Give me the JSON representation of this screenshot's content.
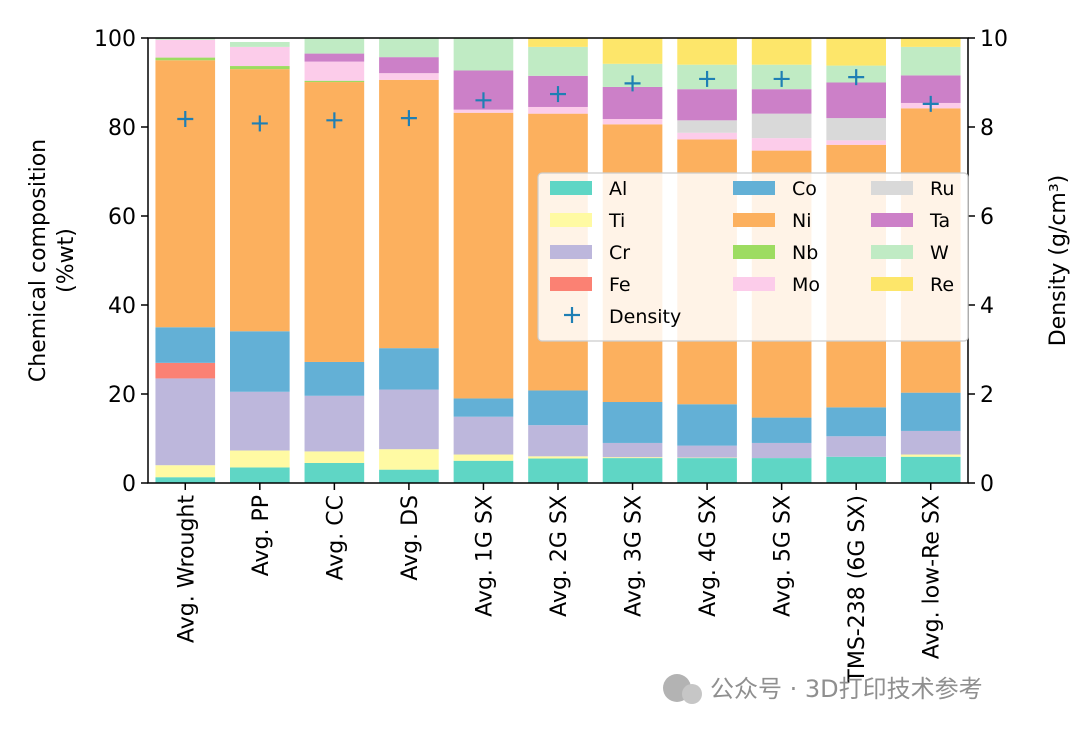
{
  "chart_data": {
    "type": "bar",
    "stacked": true,
    "categories": [
      "Avg. Wrought",
      "Avg. PP",
      "Avg. CC",
      "Avg. DS",
      "Avg. 1G SX",
      "Avg. 2G SX",
      "Avg. 3G SX",
      "Avg. 4G SX",
      "Avg. 5G SX",
      "TMS-238 (6G SX)",
      "Avg. low-Re SX"
    ],
    "ylabel_lines": [
      "Chemical composition",
      "(%wt)"
    ],
    "y2label": "Density (g/cm³)",
    "ylim": [
      0,
      100
    ],
    "y2lim": [
      0,
      10
    ],
    "yticks": [
      0,
      20,
      40,
      60,
      80,
      100
    ],
    "y2ticks": [
      0,
      2,
      4,
      6,
      8,
      10
    ],
    "series": [
      {
        "name": "Al",
        "color": "#5fd6c5",
        "values": [
          1.3,
          3.5,
          4.5,
          3.0,
          5.0,
          5.5,
          5.6,
          5.6,
          5.6,
          5.9,
          5.9
        ]
      },
      {
        "name": "Ti",
        "color": "#fffaa3",
        "values": [
          2.7,
          3.8,
          2.6,
          4.6,
          1.4,
          0.5,
          0.2,
          0.1,
          0.0,
          0.0,
          0.5
        ]
      },
      {
        "name": "Cr",
        "color": "#bdb7dc",
        "values": [
          19.5,
          13.2,
          12.5,
          13.4,
          8.5,
          7.0,
          3.2,
          2.7,
          3.4,
          4.6,
          5.3
        ]
      },
      {
        "name": "Fe",
        "color": "#fb8173",
        "values": [
          3.5,
          0.0,
          0.0,
          0.0,
          0.0,
          0.0,
          0.0,
          0.0,
          0.0,
          0.0,
          0.0
        ]
      },
      {
        "name": "Co",
        "color": "#63b0d6",
        "values": [
          8.0,
          13.6,
          7.6,
          9.3,
          4.1,
          7.8,
          9.2,
          9.3,
          5.7,
          6.5,
          8.6
        ]
      },
      {
        "name": "Ni",
        "color": "#fcb05e",
        "values": [
          60.0,
          58.9,
          62.9,
          60.3,
          64.2,
          62.2,
          62.4,
          59.5,
          60.0,
          59.0,
          63.9
        ]
      },
      {
        "name": "Nb",
        "color": "#9ddc61",
        "values": [
          0.6,
          0.7,
          0.3,
          0.0,
          0.0,
          0.0,
          0.0,
          0.0,
          0.0,
          0.0,
          0.0
        ]
      },
      {
        "name": "Mo",
        "color": "#fcccea",
        "values": [
          4.0,
          4.3,
          4.3,
          1.5,
          0.7,
          1.5,
          1.2,
          1.5,
          2.8,
          1.0,
          1.2
        ]
      },
      {
        "name": "Ru",
        "color": "#d9d9d9",
        "values": [
          0.0,
          0.0,
          0.0,
          0.0,
          0.0,
          0.0,
          0.0,
          2.8,
          5.5,
          5.0,
          0.0
        ]
      },
      {
        "name": "Ta",
        "color": "#cc80c8",
        "values": [
          0.0,
          0.0,
          1.8,
          3.6,
          8.8,
          7.0,
          7.2,
          7.0,
          5.5,
          8.0,
          6.2
        ]
      },
      {
        "name": "W",
        "color": "#c0ebc4",
        "values": [
          0.4,
          1.1,
          3.5,
          4.3,
          7.3,
          6.5,
          5.2,
          5.5,
          5.5,
          3.8,
          6.4
        ]
      },
      {
        "name": "Re",
        "color": "#fde66a",
        "values": [
          0.0,
          0.0,
          0.0,
          0.0,
          0.0,
          2.0,
          5.8,
          6.0,
          6.0,
          6.2,
          2.0
        ]
      }
    ],
    "density": {
      "name": "Density",
      "color": "#1f7fb4",
      "marker": "+",
      "values": [
        8.18,
        8.08,
        8.15,
        8.2,
        8.6,
        8.74,
        8.98,
        9.08,
        9.08,
        9.12,
        8.52
      ]
    },
    "legend": {
      "location": "center-right",
      "columns": 3,
      "entries": [
        "Al",
        "Co",
        "Ru",
        "Ti",
        "Ni",
        "Ta",
        "Cr",
        "Nb",
        "W",
        "Fe",
        "Mo",
        "Re",
        "Density"
      ]
    }
  },
  "watermark": {
    "text": "公众号 · 3D打印技术参考"
  }
}
